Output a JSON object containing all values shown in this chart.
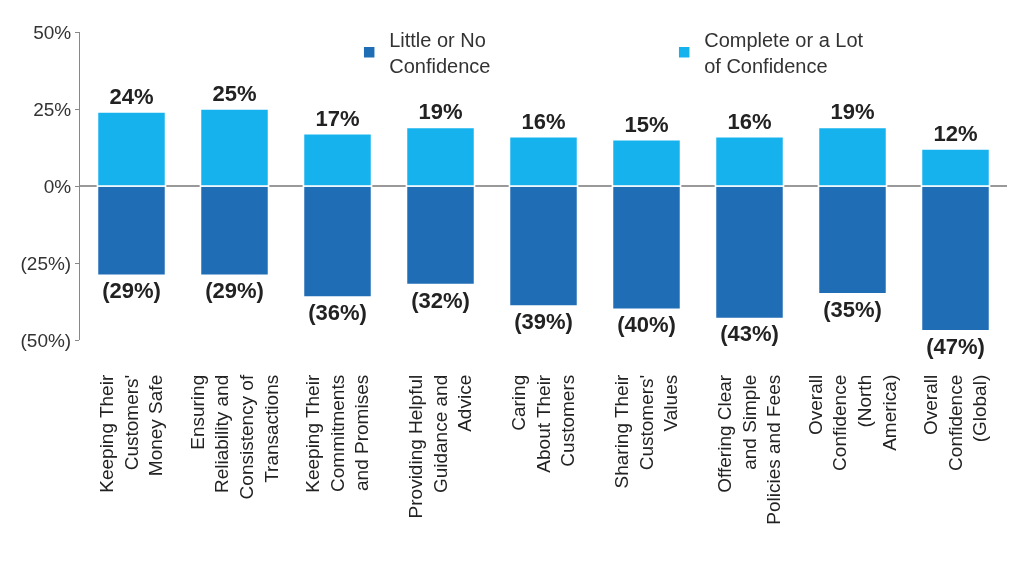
{
  "chart_data": {
    "type": "bar",
    "stacked": true,
    "categories": [
      "Keeping Their\nCustomers'\nMoney Safe",
      "Ensuring\nReliability and\nConsistency of\nTransactions",
      "Keeping Their\nCommitments\nand Promises",
      "Providing Helpful\nGuidance and\nAdvice",
      "Caring\nAbout Their\nCustomers",
      "Sharing Their\nCustomers'\nValues",
      "Offering Clear\nand Simple\nPolicies and Fees",
      "Overall\nConfidence\n(North\nAmerica)",
      "Overall\nConfidence\n(Global)"
    ],
    "series": [
      {
        "name": "Little or No\nConfidence",
        "color": "#1f6db5",
        "values": [
          -29,
          -29,
          -36,
          -32,
          -39,
          -40,
          -43,
          -35,
          -47
        ],
        "value_labels": [
          "(29%)",
          "(29%)",
          "(36%)",
          "(32%)",
          "(39%)",
          "(40%)",
          "(43%)",
          "(35%)",
          "(47%)"
        ]
      },
      {
        "name": "Complete or a Lot\nof Confidence",
        "color": "#15b2ee",
        "values": [
          24,
          25,
          17,
          19,
          16,
          15,
          16,
          19,
          12
        ],
        "value_labels": [
          "24%",
          "25%",
          "17%",
          "19%",
          "16%",
          "15%",
          "16%",
          "19%",
          "12%"
        ]
      }
    ],
    "ylim": [
      -50,
      50
    ],
    "yticks": [
      {
        "value": 50,
        "label": "50%"
      },
      {
        "value": 25,
        "label": "25%"
      },
      {
        "value": 0,
        "label": "0%"
      },
      {
        "value": -25,
        "label": "(25%)"
      },
      {
        "value": -50,
        "label": "(50%)"
      }
    ],
    "ref_lines": [
      {
        "axis": "y",
        "value": 0,
        "color": "#999999"
      }
    ],
    "grid": false,
    "legend": "top"
  }
}
